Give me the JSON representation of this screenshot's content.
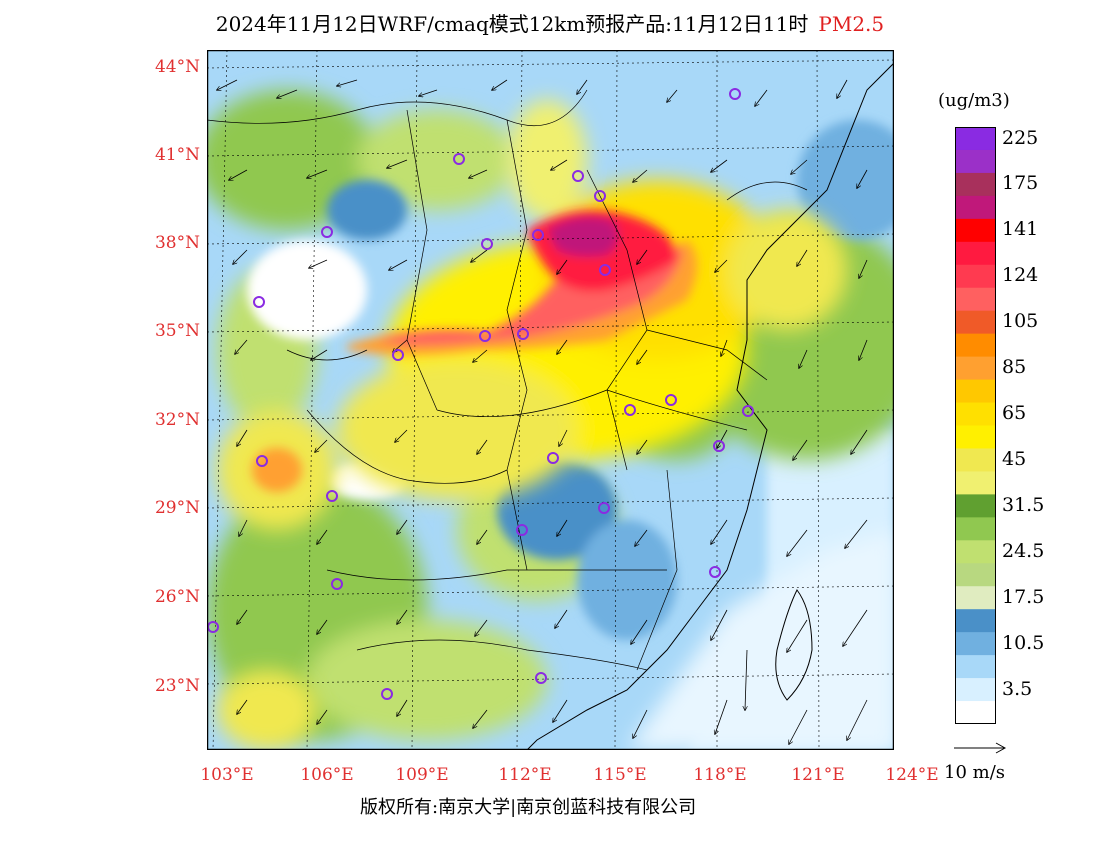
{
  "title": {
    "main": "2024年11月12日WRF/cmaq模式12km预报产品:11月12日11时",
    "pollutant": "PM2.5"
  },
  "lat_labels": [
    "44°N",
    "41°N",
    "38°N",
    "35°N",
    "32°N",
    "29°N",
    "26°N",
    "23°N"
  ],
  "lon_labels": [
    "103°E",
    "106°E",
    "109°E",
    "112°E",
    "115°E",
    "118°E",
    "121°E",
    "124°E"
  ],
  "colorbar": {
    "unit": "(ug/m3)",
    "levels": [
      {
        "label": "225",
        "color": "#8a2be2"
      },
      {
        "label": "",
        "color": "#9b30c8"
      },
      {
        "label": "175",
        "color": "#a8305c"
      },
      {
        "label": "",
        "color": "#c0187a"
      },
      {
        "label": "141",
        "color": "#ff0000"
      },
      {
        "label": "",
        "color": "#ff1a40"
      },
      {
        "label": "124",
        "color": "#ff3a50"
      },
      {
        "label": "",
        "color": "#ff6060"
      },
      {
        "label": "105",
        "color": "#f05a28"
      },
      {
        "label": "",
        "color": "#ff8c00"
      },
      {
        "label": "85",
        "color": "#ffa030"
      },
      {
        "label": "",
        "color": "#ffc800"
      },
      {
        "label": "65",
        "color": "#ffe000"
      },
      {
        "label": "",
        "color": "#fff000"
      },
      {
        "label": "45",
        "color": "#f0e850"
      },
      {
        "label": "",
        "color": "#f0f070"
      },
      {
        "label": "31.5",
        "color": "#60a030"
      },
      {
        "label": "",
        "color": "#90c850"
      },
      {
        "label": "24.5",
        "color": "#c0e070"
      },
      {
        "label": "",
        "color": "#b8d880"
      },
      {
        "label": "17.5",
        "color": "#e0ecc0"
      },
      {
        "label": "",
        "color": "#4a90c8"
      },
      {
        "label": "10.5",
        "color": "#70b0e0"
      },
      {
        "label": "",
        "color": "#a8d8f8"
      },
      {
        "label": "3.5",
        "color": "#d8f0ff"
      },
      {
        "label": "",
        "color": "#ffffff"
      }
    ]
  },
  "vector_label": "10 m/s",
  "footer": "版权所有:南京大学|南京创蓝科技有限公司"
}
